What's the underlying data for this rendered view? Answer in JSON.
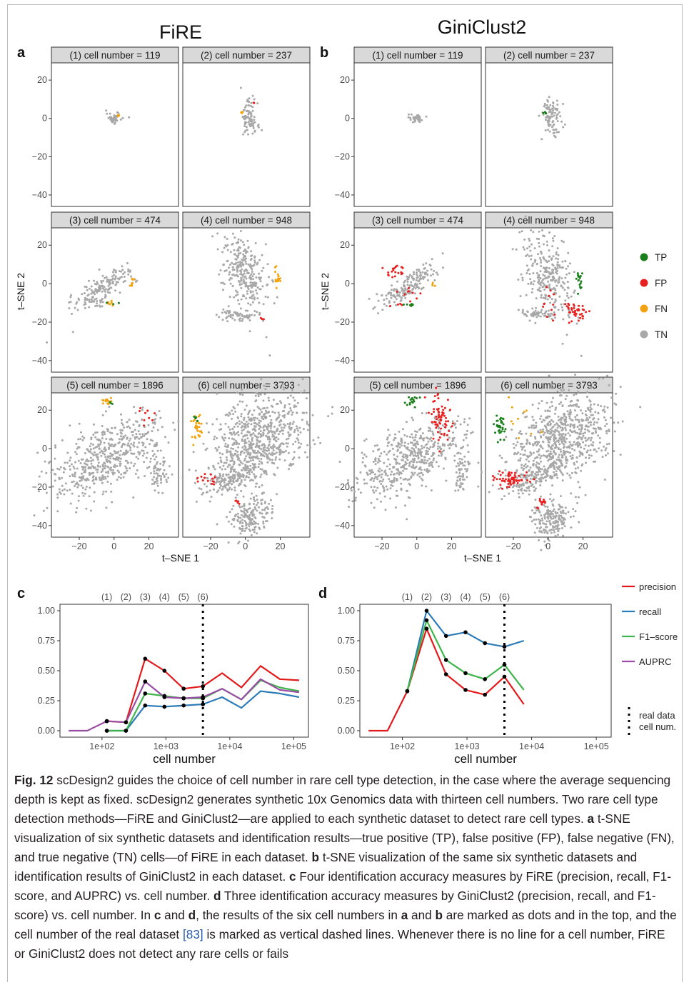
{
  "figure": {
    "method_titles": [
      "FiRE",
      "GiniClust2"
    ],
    "panel_letters": {
      "a": "a",
      "b": "b",
      "c": "c",
      "d": "d"
    },
    "facet_labels": [
      "(1) cell number = 119",
      "(2) cell number = 237",
      "(3) cell number = 474",
      "(4) cell number = 948",
      "(5) cell number = 1896",
      "(6) cell number = 3793"
    ],
    "tsne_xlabel": "t–SNE 1",
    "tsne_ylabel": "t–SNE 2",
    "tsne_yticks": [
      "20",
      "0",
      "−20",
      "−40"
    ],
    "tsne_xticks": [
      "−20",
      "0",
      "20"
    ],
    "legend_tsne": [
      {
        "label": "TP",
        "color": "#1a7f1a"
      },
      {
        "label": "FP",
        "color": "#e8201f"
      },
      {
        "label": "FN",
        "color": "#f2a20c"
      },
      {
        "label": "TN",
        "color": "#a8a8a8"
      }
    ],
    "legend_lines": [
      {
        "label": "precision",
        "color": "#e31a1c"
      },
      {
        "label": "recall",
        "color": "#2c7bb6"
      },
      {
        "label": "F1–score",
        "color": "#3db54a"
      },
      {
        "label": "AUPRC",
        "color": "#984ea3"
      }
    ],
    "legend_vline": [
      "real data",
      "cell num."
    ],
    "top_marks": [
      "(1)",
      "(2)",
      "(3)",
      "(4)",
      "(5)",
      "(6)"
    ],
    "line_xlabel": "cell number",
    "line_yticks": [
      "1.00",
      "0.75",
      "0.50",
      "0.25",
      "0.00"
    ],
    "line_xticks": [
      "1e+02",
      "1e+03",
      "1e+04",
      "1e+05"
    ]
  },
  "chart_data": [
    {
      "panel": "c",
      "type": "line",
      "x_scale": "log10",
      "xlabel": "cell number",
      "ylim": [
        0,
        1
      ],
      "reference_line_x": 3793,
      "marked_x": [
        119,
        237,
        474,
        948,
        1896,
        3793
      ],
      "x": [
        30,
        59,
        119,
        237,
        474,
        948,
        1896,
        3793,
        7586,
        15172,
        30344,
        60688,
        121376
      ],
      "series": [
        {
          "name": "precision",
          "values": [
            null,
            null,
            0.08,
            0.07,
            0.6,
            0.5,
            0.35,
            0.37,
            0.48,
            0.36,
            0.54,
            0.43,
            0.42
          ]
        },
        {
          "name": "recall",
          "values": [
            null,
            null,
            0.0,
            0.0,
            0.21,
            0.2,
            0.21,
            0.22,
            0.28,
            0.19,
            0.33,
            0.31,
            0.28
          ]
        },
        {
          "name": "F1–score",
          "values": [
            null,
            null,
            0.0,
            0.0,
            0.31,
            0.29,
            0.27,
            0.27,
            0.35,
            0.26,
            0.42,
            0.36,
            0.33
          ]
        },
        {
          "name": "AUPRC",
          "values": [
            0.0,
            0.0,
            0.08,
            0.07,
            0.41,
            0.28,
            0.27,
            0.28,
            0.35,
            0.26,
            0.43,
            0.34,
            0.32
          ]
        }
      ]
    },
    {
      "panel": "d",
      "type": "line",
      "x_scale": "log10",
      "xlabel": "cell number",
      "ylim": [
        0,
        1
      ],
      "reference_line_x": 3793,
      "marked_x": [
        119,
        237,
        474,
        948,
        1896,
        3793
      ],
      "x": [
        30,
        59,
        119,
        237,
        474,
        948,
        1896,
        3793,
        7586
      ],
      "series": [
        {
          "name": "precision",
          "values": [
            0.0,
            0.0,
            0.33,
            0.85,
            0.47,
            0.34,
            0.3,
            0.45,
            0.22
          ]
        },
        {
          "name": "recall",
          "values": [
            null,
            null,
            0.33,
            1.0,
            0.79,
            0.82,
            0.73,
            0.7,
            0.75
          ]
        },
        {
          "name": "F1–score",
          "values": [
            null,
            null,
            0.33,
            0.92,
            0.59,
            0.48,
            0.43,
            0.55,
            0.34
          ]
        }
      ]
    }
  ],
  "caption": {
    "fig_label": "Fig. 12",
    "intro": "scDesign2 guides the choice of cell number in rare cell type detection, in the case where the average sequencing depth is kept as fixed. scDesign2 generates synthetic 10x Genomics data with thirteen cell numbers. Two rare cell type detection methods—FiRE and GiniClust2—are applied to each synthetic dataset to detect rare cell types.",
    "a": "a",
    "a_text": "t-SNE visualization of six synthetic datasets and identification results—true positive (TP), false positive (FP), false negative (FN), and true negative (TN) cells—of FiRE in each dataset.",
    "b": "b",
    "b_text": "t-SNE visualization of the same six synthetic datasets and identification results of GiniClust2 in each dataset.",
    "c": "c",
    "c_text": "Four identification accuracy measures by FiRE (precision, recall, F1-score, and AUPRC) vs. cell number.",
    "d": "d",
    "d_text": "Three identification accuracy measures by GiniClust2 (precision, recall, and F1-score) vs. cell number. In",
    "c2": "c",
    "and1": "and",
    "d2": "d",
    "mid_text": ", the results of the six cell numbers in",
    "a2": "a",
    "and2": "and",
    "b2": "b",
    "tail1": "are marked as dots and in the top, and the cell number of the real dataset",
    "ref": "[83]",
    "tail2": "is marked as vertical dashed lines. Whenever there is no line for a cell number, FiRE or GiniClust2 does not detect any rare cells or fails"
  }
}
